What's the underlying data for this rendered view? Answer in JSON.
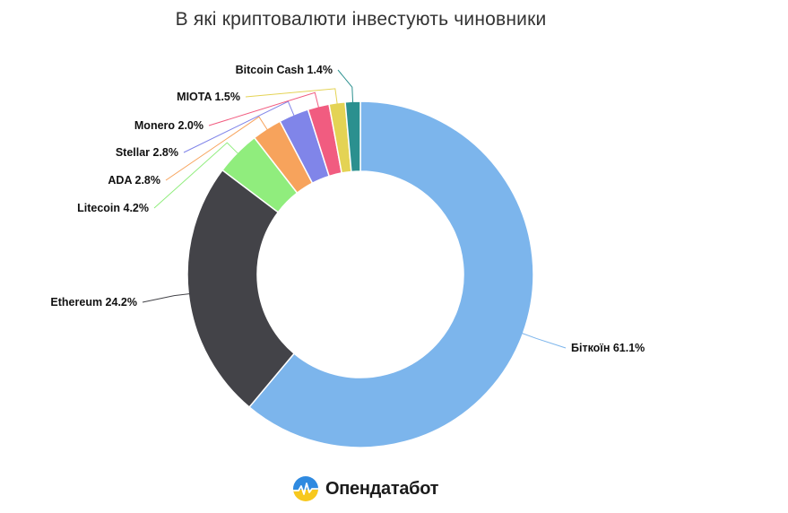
{
  "chart_data": {
    "type": "pie",
    "donut": true,
    "title": "В які криптовалюти інвестують чиновники",
    "categories": [
      "Біткоїн",
      "Ethereum",
      "Litecoin",
      "ADA",
      "Stellar",
      "Monero",
      "MIOTA",
      "Bitcoin Cash"
    ],
    "values": [
      61.1,
      24.2,
      4.2,
      2.8,
      2.8,
      2.0,
      1.5,
      1.4
    ],
    "labels": [
      "Біткоїн 61.1%",
      "Ethereum 24.2%",
      "Litecoin 4.2%",
      "ADA 2.8%",
      "Stellar 2.8%",
      "Monero 2.0%",
      "MIOTA 1.5%",
      "Bitcoin Cash 1.4%"
    ],
    "colors": [
      "#7cb5ec",
      "#434348",
      "#90ed7d",
      "#f7a35c",
      "#8085e9",
      "#f15c80",
      "#e4d354",
      "#2b908f"
    ],
    "legend": "none"
  },
  "brand": {
    "name": "Опендатабот"
  }
}
